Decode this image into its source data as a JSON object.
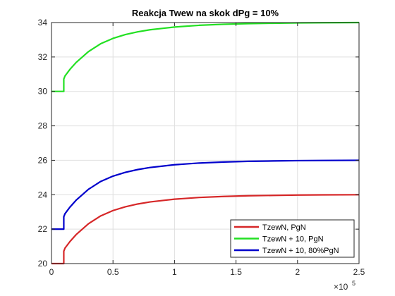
{
  "chart_data": {
    "type": "line",
    "title": "Reakcja Twew na skok dPg = 10%",
    "xlabel": "",
    "ylabel": "",
    "xlim": [
      0,
      2.5
    ],
    "ylim": [
      20,
      34
    ],
    "x_exponent_label": "×10",
    "x_exponent_power": "5",
    "x_ticks": [
      0,
      0.5,
      1,
      1.5,
      2,
      2.5
    ],
    "x_tick_labels": [
      "0",
      "0.5",
      "1",
      "1.5",
      "2",
      "2.5"
    ],
    "y_ticks": [
      20,
      22,
      24,
      26,
      28,
      30,
      32,
      34
    ],
    "y_tick_labels": [
      "20",
      "22",
      "24",
      "26",
      "28",
      "30",
      "32",
      "34"
    ],
    "grid": true,
    "legend_position": "bottom-right",
    "step_time": 0.1,
    "series": [
      {
        "name": "TzewN, PgN",
        "color": "#d62728",
        "x": [
          0,
          0.1,
          0.1,
          0.11,
          0.15,
          0.2,
          0.3,
          0.4,
          0.5,
          0.6,
          0.7,
          0.8,
          0.9,
          1.0,
          1.2,
          1.4,
          1.6,
          1.8,
          2.0,
          2.2,
          2.5
        ],
        "y": [
          20,
          20,
          20.72,
          20.9,
          21.28,
          21.68,
          22.31,
          22.77,
          23.08,
          23.3,
          23.46,
          23.58,
          23.66,
          23.74,
          23.84,
          23.9,
          23.94,
          23.96,
          23.98,
          23.99,
          24.0
        ]
      },
      {
        "name": "TzewN + 10, PgN",
        "color": "#22e022",
        "x": [
          0,
          0.1,
          0.1,
          0.11,
          0.15,
          0.2,
          0.3,
          0.4,
          0.5,
          0.6,
          0.7,
          0.8,
          0.9,
          1.0,
          1.2,
          1.4,
          1.6,
          1.8,
          2.0,
          2.2,
          2.5
        ],
        "y": [
          30,
          30,
          30.72,
          30.9,
          31.28,
          31.68,
          32.31,
          32.77,
          33.08,
          33.3,
          33.46,
          33.58,
          33.66,
          33.74,
          33.84,
          33.9,
          33.94,
          33.96,
          33.98,
          33.99,
          34.0
        ]
      },
      {
        "name": "TzewN + 10, 80%PgN",
        "color": "#0000cc",
        "x": [
          0,
          0.1,
          0.1,
          0.11,
          0.15,
          0.2,
          0.3,
          0.4,
          0.5,
          0.6,
          0.7,
          0.8,
          0.9,
          1.0,
          1.2,
          1.4,
          1.6,
          1.8,
          2.0,
          2.2,
          2.5
        ],
        "y": [
          22,
          22,
          22.72,
          22.9,
          23.28,
          23.68,
          24.31,
          24.77,
          25.08,
          25.3,
          25.46,
          25.58,
          25.66,
          25.74,
          25.84,
          25.9,
          25.94,
          25.96,
          25.98,
          25.99,
          26.0
        ]
      }
    ]
  }
}
